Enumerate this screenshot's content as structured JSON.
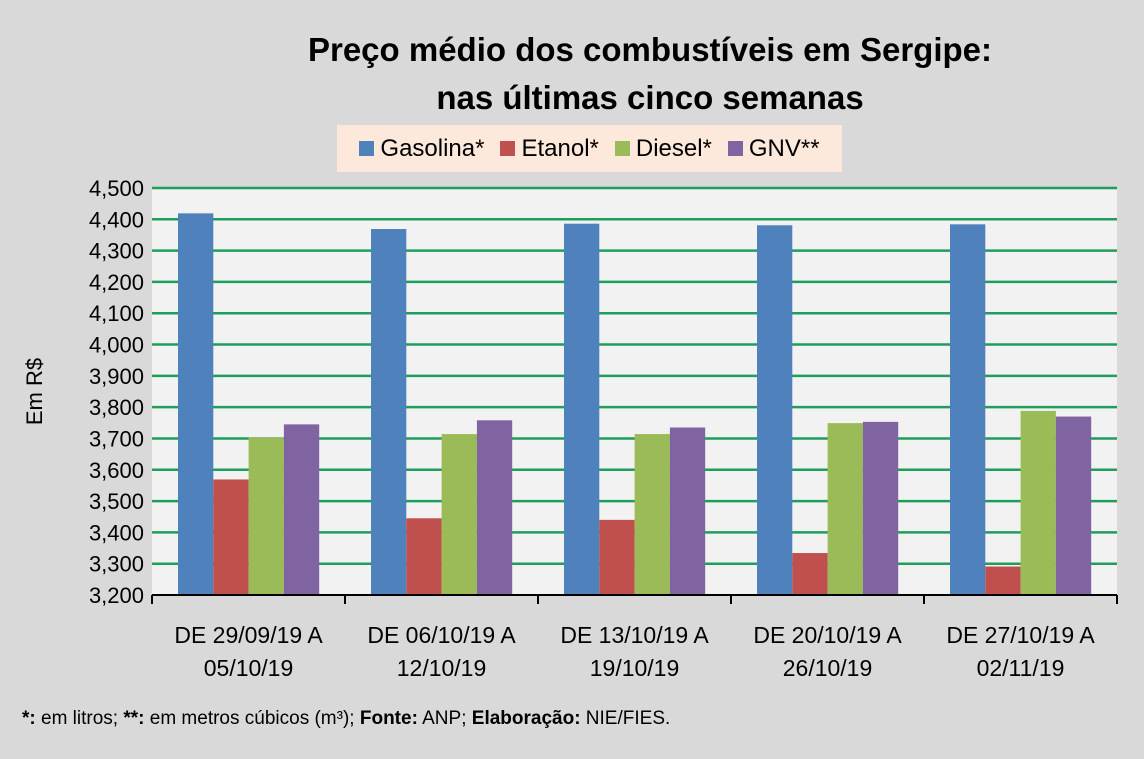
{
  "chart_data": {
    "type": "bar",
    "title_line1": "Preço médio dos combustíveis em Sergipe:",
    "title_line2": "nas últimas cinco semanas",
    "ylabel": "Em R$",
    "xlabel": "",
    "ylim": [
      3200,
      4500
    ],
    "yticks": [
      "3,200",
      "3,300",
      "3,400",
      "3,500",
      "3,600",
      "3,700",
      "3,800",
      "3,900",
      "4,000",
      "4,100",
      "4,200",
      "4,300",
      "4,400",
      "4,500"
    ],
    "grid": true,
    "legend_position": "top",
    "categories": [
      [
        "DE 29/09/19 A",
        "05/10/19"
      ],
      [
        "DE 06/10/19 A",
        "12/10/19"
      ],
      [
        "DE 13/10/19 A",
        "19/10/19"
      ],
      [
        "DE 20/10/19 A",
        "26/10/19"
      ],
      [
        "DE 27/10/19 A",
        "02/11/19"
      ]
    ],
    "series": [
      {
        "name": "Gasolina*",
        "color": "#4f81bd",
        "values": [
          4419,
          4369,
          4386,
          4381,
          4384
        ]
      },
      {
        "name": "Etanol*",
        "color": "#c0504d",
        "values": [
          3569,
          3445,
          3440,
          3334,
          3291
        ]
      },
      {
        "name": "Diesel*",
        "color": "#9bbb59",
        "values": [
          3703,
          3714,
          3714,
          3749,
          3788
        ]
      },
      {
        "name": "GNV**",
        "color": "#8064a2",
        "values": [
          3745,
          3758,
          3735,
          3753,
          3770
        ]
      }
    ],
    "colors": {
      "background": "#d9d9d9",
      "plot": "#f2f2f2",
      "grid": "#1e9e5a",
      "legend_bg": "#fce9dc"
    }
  },
  "footer": {
    "p1_bold": "*:",
    "p1": " em litros; ",
    "p2_bold": "**:",
    "p2": " em metros cúbicos (m³); ",
    "p3_bold": "Fonte:",
    "p3": " ANP; ",
    "p4_bold": "Elaboração:",
    "p4": " NIE/FIES."
  }
}
